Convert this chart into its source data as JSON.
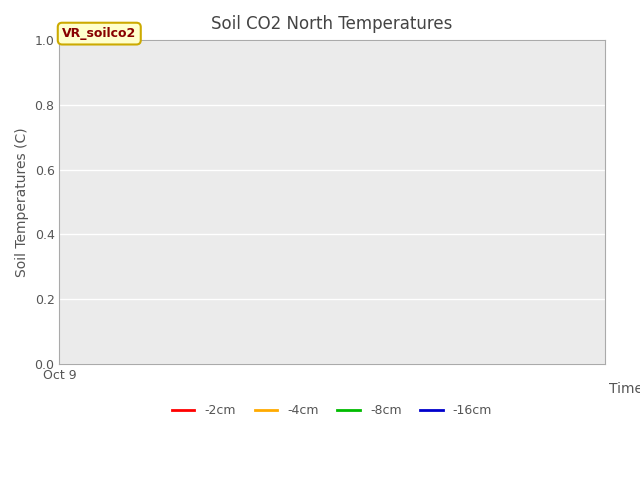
{
  "title": "Soil CO2 North Temperatures",
  "ylabel": "Soil Temperatures (C)",
  "xlabel": "Time",
  "ylim": [
    0.0,
    1.0
  ],
  "yticks": [
    0.0,
    0.2,
    0.4,
    0.6,
    0.8,
    1.0
  ],
  "xticklabels": [
    "Oct 9"
  ],
  "figure_bg_color": "#ffffff",
  "plot_bg_color": "#ebebeb",
  "grid_color": "#ffffff",
  "annotation_text": "VR_soilco2",
  "annotation_bg": "#ffffcc",
  "annotation_border": "#ccaa00",
  "annotation_text_color": "#880000",
  "legend_entries": [
    {
      "label": "-2cm",
      "color": "#ff0000"
    },
    {
      "label": "-4cm",
      "color": "#ffaa00"
    },
    {
      "label": "-8cm",
      "color": "#00bb00"
    },
    {
      "label": "-16cm",
      "color": "#0000cc"
    }
  ],
  "title_fontsize": 12,
  "axis_label_fontsize": 10,
  "tick_label_fontsize": 9,
  "tick_label_color": "#555555",
  "spine_color": "#aaaaaa",
  "title_color": "#444444",
  "axis_label_color": "#555555"
}
